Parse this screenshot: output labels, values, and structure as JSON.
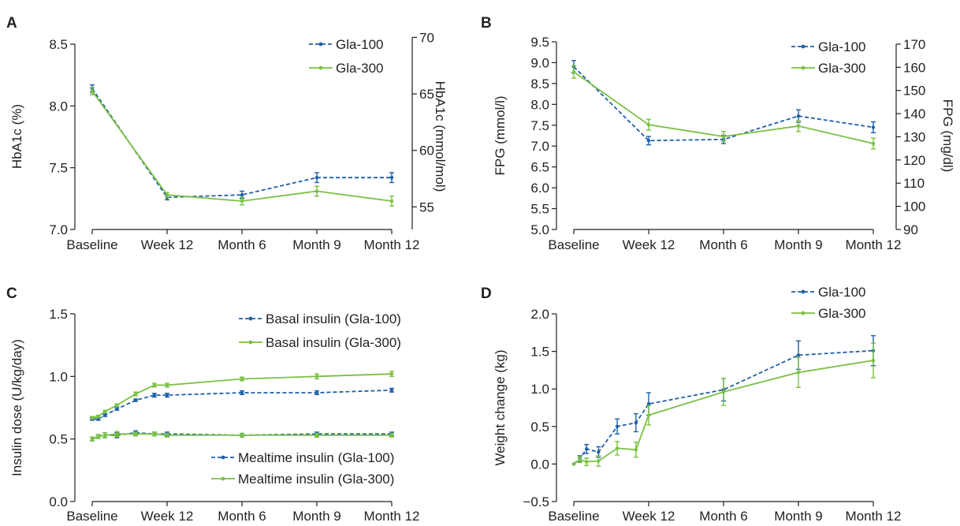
{
  "colors": {
    "gla100": "#2060a8",
    "gla300": "#7ac143",
    "axis": "#231f20"
  },
  "chart_data": [
    {
      "panel": "A",
      "type": "line",
      "categories": [
        "Baseline",
        "Week 12",
        "Month 6",
        "Month 9",
        "Month 12"
      ],
      "ylabel": "HbA1c (%)",
      "ylim": [
        7.0,
        8.5
      ],
      "yticks": [
        "7.0",
        "7.5",
        "8.0",
        "8.5"
      ],
      "y2label": "HbA1c (mmol/mol)",
      "y2lim": [
        53,
        69.4
      ],
      "y2ticks": [
        "55",
        "60",
        "65",
        "70"
      ],
      "legend": [
        "Gla-100",
        "Gla-300"
      ],
      "legend_position": "top-right",
      "series": [
        {
          "name": "Gla-100",
          "x": [
            0,
            1,
            2,
            3,
            4
          ],
          "values": [
            8.14,
            7.26,
            7.28,
            7.42,
            7.42
          ],
          "err": [
            0.03,
            0.02,
            0.03,
            0.04,
            0.04
          ]
        },
        {
          "name": "Gla-300",
          "x": [
            0,
            1,
            2,
            3,
            4
          ],
          "values": [
            8.12,
            7.28,
            7.23,
            7.31,
            7.23
          ],
          "err": [
            0.03,
            0.02,
            0.03,
            0.04,
            0.04
          ]
        }
      ]
    },
    {
      "panel": "B",
      "type": "line",
      "categories": [
        "Baseline",
        "Week 12",
        "Month 6",
        "Month 9",
        "Month 12"
      ],
      "ylabel": "FPG (mmol/l)",
      "ylim": [
        5.0,
        9.5
      ],
      "yticks": [
        "5.0",
        "5.5",
        "6.0",
        "6.5",
        "7.0",
        "7.5",
        "8.0",
        "8.5",
        "9.0",
        "9.5"
      ],
      "y2label": "FPG (mg/dl)",
      "y2lim": [
        90,
        171
      ],
      "y2ticks": [
        "90",
        "100",
        "110",
        "120",
        "130",
        "140",
        "150",
        "160",
        "170"
      ],
      "legend": [
        "Gla-100",
        "Gla-300"
      ],
      "legend_position": "top-right",
      "series": [
        {
          "name": "Gla-100",
          "x": [
            0,
            1,
            2,
            3,
            4
          ],
          "values": [
            8.9,
            7.13,
            7.16,
            7.72,
            7.45
          ],
          "err": [
            0.15,
            0.1,
            0.1,
            0.15,
            0.13
          ]
        },
        {
          "name": "Gla-300",
          "x": [
            0,
            1,
            2,
            3,
            4
          ],
          "values": [
            8.78,
            7.51,
            7.23,
            7.48,
            7.06
          ],
          "err": [
            0.15,
            0.13,
            0.12,
            0.13,
            0.13
          ]
        }
      ]
    },
    {
      "panel": "C",
      "type": "line",
      "categories": [
        "Baseline",
        "Week 12",
        "Month 6",
        "Month 9",
        "Month 12"
      ],
      "ylabel": "Insulin dose (U/kg/day)",
      "ylim": [
        0.0,
        1.5
      ],
      "yticks": [
        "0.0",
        "0.5",
        "1.0",
        "1.5"
      ],
      "legend": [
        "Basal insulin (Gla-100)",
        "Basal insulin (Gla-300)",
        "Mealtime insulin (Gla-100)",
        "Mealtime insulin (Gla-300)"
      ],
      "series": [
        {
          "name": "Basal insulin (Gla-100)",
          "x": [
            0,
            0.08,
            0.17,
            0.33,
            0.58,
            0.83,
            1,
            2,
            3,
            4
          ],
          "values": [
            0.66,
            0.66,
            0.69,
            0.74,
            0.81,
            0.85,
            0.85,
            0.87,
            0.87,
            0.89
          ],
          "err": [
            0.01,
            0.01,
            0.01,
            0.01,
            0.01,
            0.015,
            0.015,
            0.015,
            0.015,
            0.015
          ]
        },
        {
          "name": "Basal insulin (Gla-300)",
          "x": [
            0,
            0.08,
            0.17,
            0.33,
            0.58,
            0.83,
            1,
            2,
            3,
            4
          ],
          "values": [
            0.67,
            0.68,
            0.72,
            0.77,
            0.86,
            0.93,
            0.93,
            0.98,
            1.0,
            1.02
          ],
          "err": [
            0.01,
            0.01,
            0.01,
            0.01,
            0.015,
            0.015,
            0.015,
            0.015,
            0.02,
            0.02
          ]
        },
        {
          "name": "Mealtime insulin (Gla-100)",
          "x": [
            0,
            0.08,
            0.17,
            0.33,
            0.58,
            0.83,
            1,
            2,
            3,
            4
          ],
          "values": [
            0.5,
            0.52,
            0.53,
            0.53,
            0.55,
            0.54,
            0.54,
            0.53,
            0.54,
            0.54
          ],
          "err": [
            0.015,
            0.015,
            0.02,
            0.02,
            0.015,
            0.015,
            0.015,
            0.015,
            0.015,
            0.015
          ]
        },
        {
          "name": "Mealtime insulin (Gla-300)",
          "x": [
            0,
            0.08,
            0.17,
            0.33,
            0.58,
            0.83,
            1,
            2,
            3,
            4
          ],
          "values": [
            0.5,
            0.52,
            0.53,
            0.54,
            0.54,
            0.54,
            0.53,
            0.53,
            0.53,
            0.53
          ],
          "err": [
            0.015,
            0.015,
            0.02,
            0.02,
            0.015,
            0.015,
            0.015,
            0.015,
            0.015,
            0.015
          ]
        }
      ]
    },
    {
      "panel": "D",
      "type": "line",
      "categories": [
        "Baseline",
        "Week 12",
        "Month 6",
        "Month 9",
        "Month 12"
      ],
      "ylabel": "Weight change (kg)",
      "ylim": [
        -0.5,
        2.0
      ],
      "yticks": [
        "−0.5",
        "0.0",
        "0.5",
        "1.0",
        "1.5",
        "2.0"
      ],
      "legend": [
        "Gla-100",
        "Gla-300"
      ],
      "legend_position": "top-right",
      "series": [
        {
          "name": "Gla-100",
          "x": [
            0,
            0.08,
            0.17,
            0.33,
            0.58,
            0.83,
            1,
            2,
            3,
            4
          ],
          "values": [
            0,
            0.07,
            0.2,
            0.16,
            0.5,
            0.55,
            0.8,
            0.99,
            1.45,
            1.51
          ],
          "err": [
            0,
            0.04,
            0.06,
            0.07,
            0.1,
            0.12,
            0.15,
            0.15,
            0.19,
            0.2
          ]
        },
        {
          "name": "Gla-300",
          "x": [
            0,
            0.08,
            0.17,
            0.33,
            0.58,
            0.83,
            1,
            2,
            3,
            4
          ],
          "values": [
            0,
            0.06,
            0.03,
            0.04,
            0.21,
            0.19,
            0.65,
            0.96,
            1.22,
            1.38
          ],
          "err": [
            0,
            0.04,
            0.05,
            0.07,
            0.09,
            0.1,
            0.13,
            0.18,
            0.2,
            0.23
          ]
        }
      ]
    }
  ]
}
